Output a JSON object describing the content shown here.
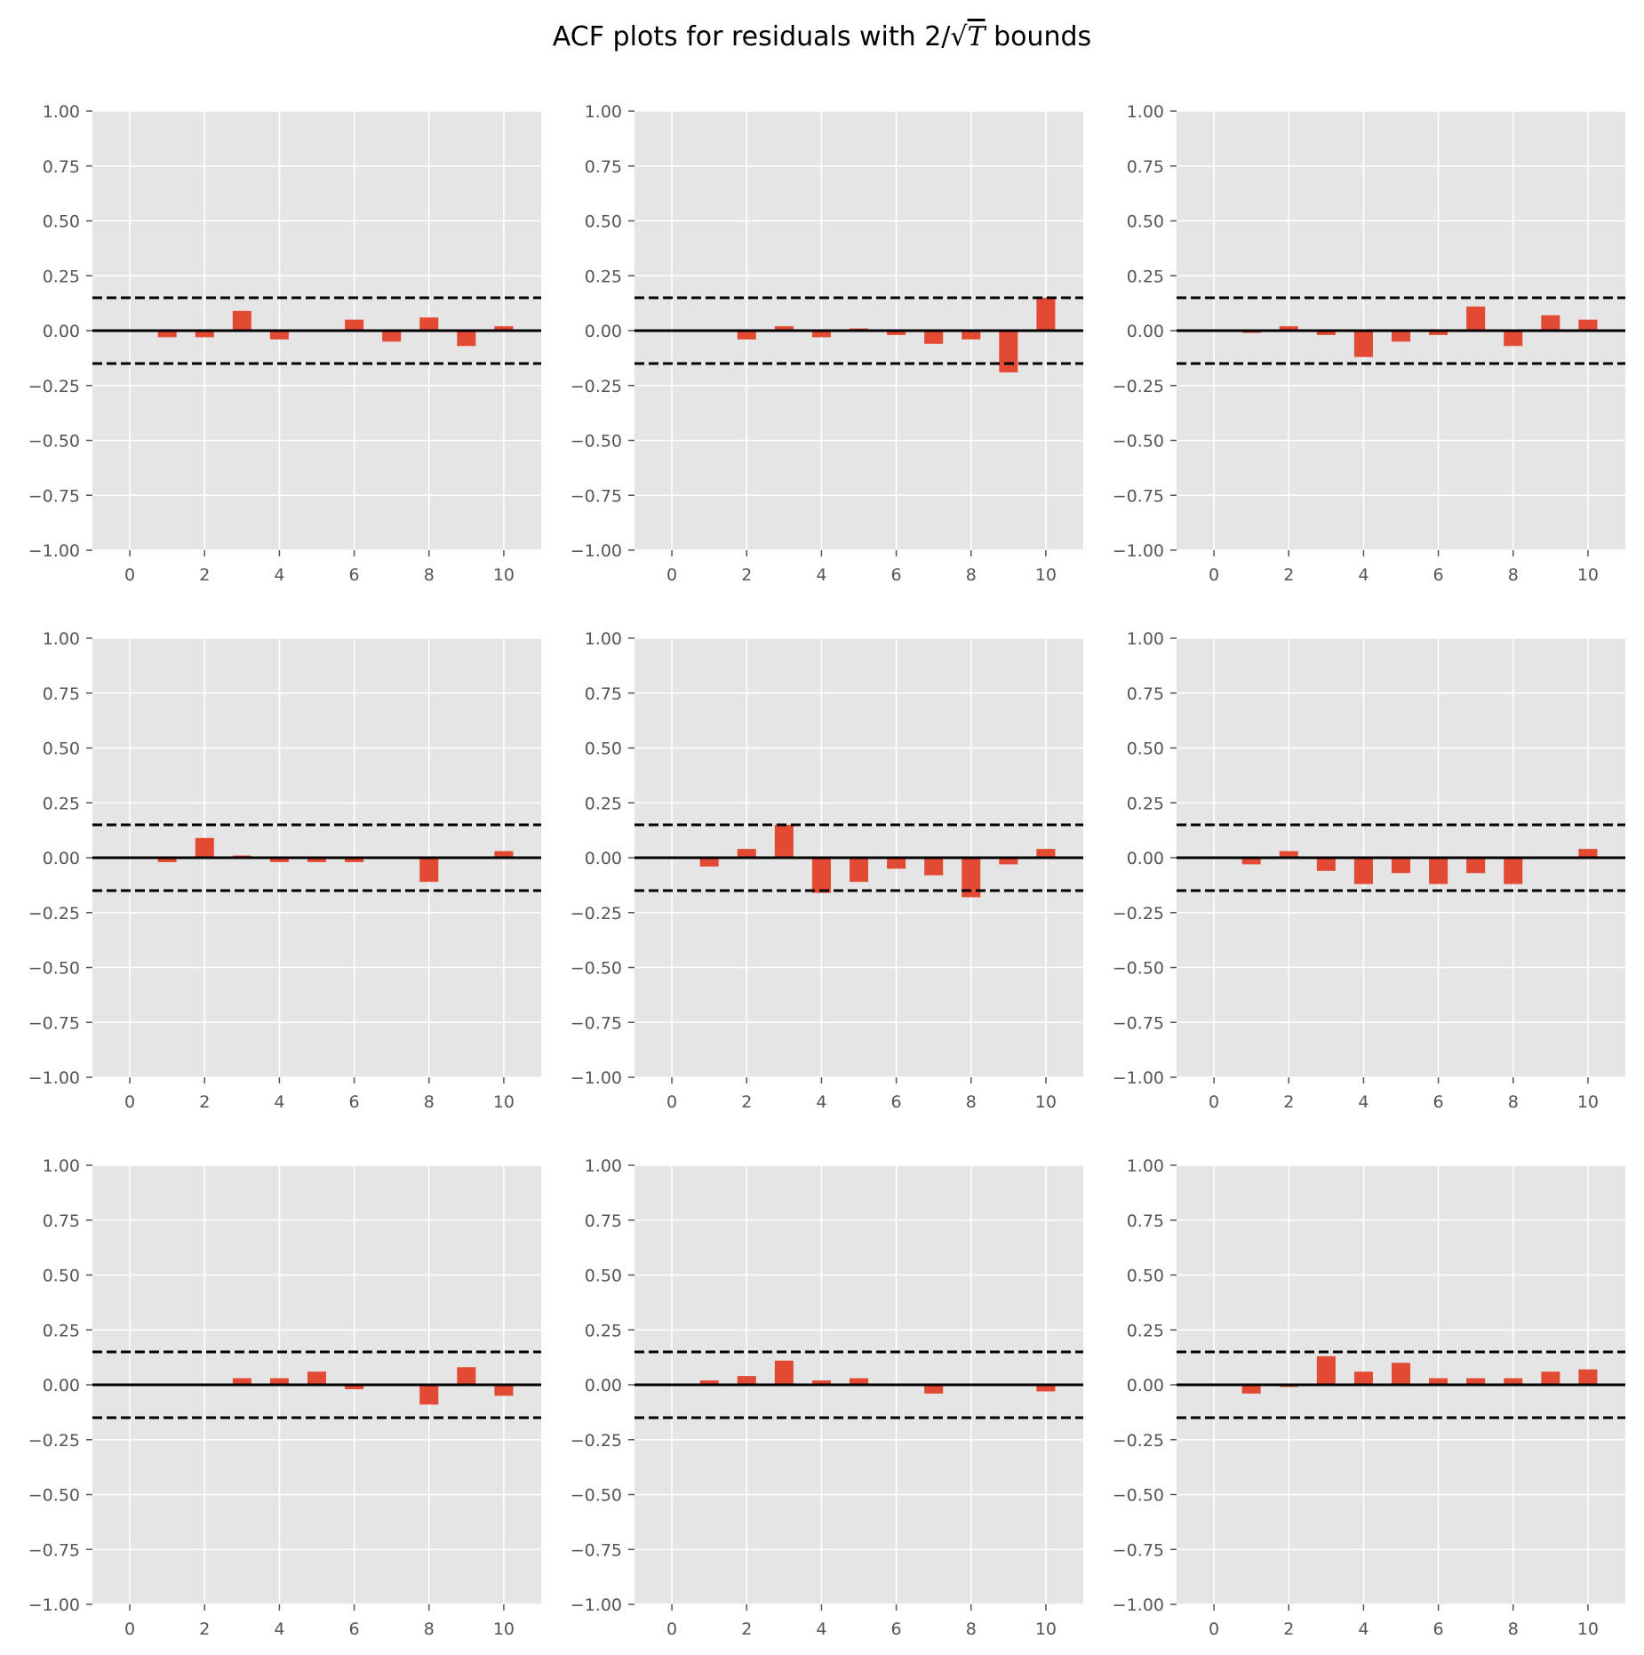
{
  "figure": {
    "title_prefix": "ACF plots for residuals with 2/",
    "title_sqrt": "√",
    "title_var": "T",
    "title_suffix": " bounds"
  },
  "colors": {
    "panel_bg": "#e5e5e5",
    "grid": "#ffffff",
    "bar": "#e24a33",
    "zero_line": "#000000",
    "bound_line": "#000000",
    "tick_text": "#555555"
  },
  "chart_data": [
    {
      "type": "bar",
      "title": "",
      "xlabel": "",
      "ylabel": "",
      "x": [
        1,
        2,
        3,
        4,
        5,
        6,
        7,
        8,
        9,
        10
      ],
      "values": [
        -0.03,
        -0.03,
        0.09,
        -0.04,
        0.0,
        0.05,
        -0.05,
        0.06,
        -0.07,
        0.02
      ],
      "bounds": [
        -0.15,
        0.15
      ],
      "xlim": [
        -1,
        11
      ],
      "ylim": [
        -1,
        1
      ],
      "xticks": [
        0,
        2,
        4,
        6,
        8,
        10
      ],
      "yticks": [
        -1.0,
        -0.75,
        -0.5,
        -0.25,
        0.0,
        0.25,
        0.5,
        0.75,
        1.0
      ],
      "grid": true
    },
    {
      "type": "bar",
      "title": "",
      "xlabel": "",
      "ylabel": "",
      "x": [
        1,
        2,
        3,
        4,
        5,
        6,
        7,
        8,
        9,
        10
      ],
      "values": [
        0.0,
        -0.04,
        0.02,
        -0.03,
        0.01,
        -0.02,
        -0.06,
        -0.04,
        -0.19,
        0.15
      ],
      "bounds": [
        -0.15,
        0.15
      ],
      "xlim": [
        -1,
        11
      ],
      "ylim": [
        -1,
        1
      ],
      "xticks": [
        0,
        2,
        4,
        6,
        8,
        10
      ],
      "yticks": [
        -1.0,
        -0.75,
        -0.5,
        -0.25,
        0.0,
        0.25,
        0.5,
        0.75,
        1.0
      ],
      "grid": true
    },
    {
      "type": "bar",
      "title": "",
      "xlabel": "",
      "ylabel": "",
      "x": [
        1,
        2,
        3,
        4,
        5,
        6,
        7,
        8,
        9,
        10
      ],
      "values": [
        -0.01,
        0.02,
        -0.02,
        -0.12,
        -0.05,
        -0.02,
        0.11,
        -0.07,
        0.07,
        0.05
      ],
      "bounds": [
        -0.15,
        0.15
      ],
      "xlim": [
        -1,
        11
      ],
      "ylim": [
        -1,
        1
      ],
      "xticks": [
        0,
        2,
        4,
        6,
        8,
        10
      ],
      "yticks": [
        -1.0,
        -0.75,
        -0.5,
        -0.25,
        0.0,
        0.25,
        0.5,
        0.75,
        1.0
      ],
      "grid": true
    },
    {
      "type": "bar",
      "title": "",
      "xlabel": "",
      "ylabel": "",
      "x": [
        1,
        2,
        3,
        4,
        5,
        6,
        7,
        8,
        9,
        10
      ],
      "values": [
        -0.02,
        0.09,
        0.01,
        -0.02,
        -0.02,
        -0.02,
        0.0,
        -0.11,
        0.0,
        0.03
      ],
      "bounds": [
        -0.15,
        0.15
      ],
      "xlim": [
        -1,
        11
      ],
      "ylim": [
        -1,
        1
      ],
      "xticks": [
        0,
        2,
        4,
        6,
        8,
        10
      ],
      "yticks": [
        -1.0,
        -0.75,
        -0.5,
        -0.25,
        0.0,
        0.25,
        0.5,
        0.75,
        1.0
      ],
      "grid": true
    },
    {
      "type": "bar",
      "title": "",
      "xlabel": "",
      "ylabel": "",
      "x": [
        1,
        2,
        3,
        4,
        5,
        6,
        7,
        8,
        9,
        10
      ],
      "values": [
        -0.04,
        0.04,
        0.15,
        -0.16,
        -0.11,
        -0.05,
        -0.08,
        -0.18,
        -0.03,
        0.04
      ],
      "bounds": [
        -0.15,
        0.15
      ],
      "xlim": [
        -1,
        11
      ],
      "ylim": [
        -1,
        1
      ],
      "xticks": [
        0,
        2,
        4,
        6,
        8,
        10
      ],
      "yticks": [
        -1.0,
        -0.75,
        -0.5,
        -0.25,
        0.0,
        0.25,
        0.5,
        0.75,
        1.0
      ],
      "grid": true
    },
    {
      "type": "bar",
      "title": "",
      "xlabel": "",
      "ylabel": "",
      "x": [
        1,
        2,
        3,
        4,
        5,
        6,
        7,
        8,
        9,
        10
      ],
      "values": [
        -0.03,
        0.03,
        -0.06,
        -0.12,
        -0.07,
        -0.12,
        -0.07,
        -0.12,
        0.0,
        0.04
      ],
      "bounds": [
        -0.15,
        0.15
      ],
      "xlim": [
        -1,
        11
      ],
      "ylim": [
        -1,
        1
      ],
      "xticks": [
        0,
        2,
        4,
        6,
        8,
        10
      ],
      "yticks": [
        -1.0,
        -0.75,
        -0.5,
        -0.25,
        0.0,
        0.25,
        0.5,
        0.75,
        1.0
      ],
      "grid": true
    },
    {
      "type": "bar",
      "title": "",
      "xlabel": "",
      "ylabel": "",
      "x": [
        1,
        2,
        3,
        4,
        5,
        6,
        7,
        8,
        9,
        10
      ],
      "values": [
        0.0,
        0.0,
        0.03,
        0.03,
        0.06,
        -0.02,
        0.0,
        -0.09,
        0.08,
        -0.05
      ],
      "bounds": [
        -0.15,
        0.15
      ],
      "xlim": [
        -1,
        11
      ],
      "ylim": [
        -1,
        1
      ],
      "xticks": [
        0,
        2,
        4,
        6,
        8,
        10
      ],
      "yticks": [
        -1.0,
        -0.75,
        -0.5,
        -0.25,
        0.0,
        0.25,
        0.5,
        0.75,
        1.0
      ],
      "grid": true
    },
    {
      "type": "bar",
      "title": "",
      "xlabel": "",
      "ylabel": "",
      "x": [
        1,
        2,
        3,
        4,
        5,
        6,
        7,
        8,
        9,
        10
      ],
      "values": [
        0.02,
        0.04,
        0.11,
        0.02,
        0.03,
        0.0,
        -0.04,
        0.0,
        0.0,
        -0.03
      ],
      "bounds": [
        -0.15,
        0.15
      ],
      "xlim": [
        -1,
        11
      ],
      "ylim": [
        -1,
        1
      ],
      "xticks": [
        0,
        2,
        4,
        6,
        8,
        10
      ],
      "yticks": [
        -1.0,
        -0.75,
        -0.5,
        -0.25,
        0.0,
        0.25,
        0.5,
        0.75,
        1.0
      ],
      "grid": true
    },
    {
      "type": "bar",
      "title": "",
      "xlabel": "",
      "ylabel": "",
      "x": [
        1,
        2,
        3,
        4,
        5,
        6,
        7,
        8,
        9,
        10
      ],
      "values": [
        -0.04,
        -0.01,
        0.13,
        0.06,
        0.1,
        0.03,
        0.03,
        0.03,
        0.06,
        0.07
      ],
      "bounds": [
        -0.15,
        0.15
      ],
      "xlim": [
        -1,
        11
      ],
      "ylim": [
        -1,
        1
      ],
      "xticks": [
        0,
        2,
        4,
        6,
        8,
        10
      ],
      "yticks": [
        -1.0,
        -0.75,
        -0.5,
        -0.25,
        0.0,
        0.25,
        0.5,
        0.75,
        1.0
      ],
      "grid": true
    }
  ]
}
